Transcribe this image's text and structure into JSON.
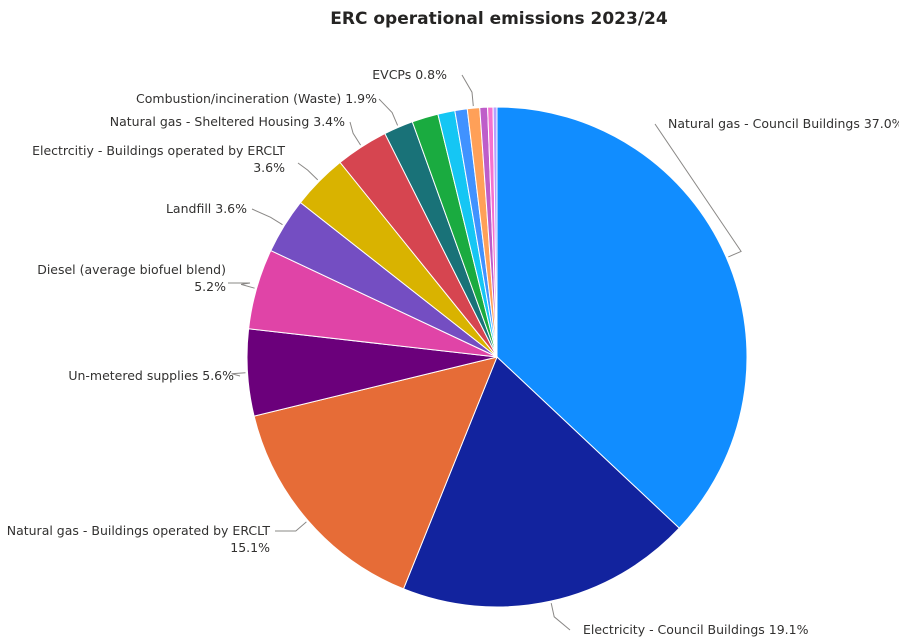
{
  "chart_data": {
    "type": "pie",
    "title": "ERC operational emissions 2023/24",
    "slices": [
      {
        "label": "Natural gas - Council Buildings",
        "value": 37.0,
        "value_label": "37.0%",
        "color": "#118dff"
      },
      {
        "label": "Electricity - Council Buildings",
        "value": 19.1,
        "value_label": "19.1%",
        "color": "#12239e"
      },
      {
        "label": "Natural gas - Buildings operated by ERCLT",
        "value": 15.1,
        "value_label": "15.1%",
        "color": "#e66c37"
      },
      {
        "label": "Un-metered supplies",
        "value": 5.6,
        "value_label": "5.6%",
        "color": "#6b007b"
      },
      {
        "label": "Diesel (average biofuel blend)",
        "value": 5.2,
        "value_label": "5.2%",
        "color": "#e044a7"
      },
      {
        "label": "Landfill",
        "value": 3.6,
        "value_label": "3.6%",
        "color": "#744ec2"
      },
      {
        "label": "Electrcitiy - Buildings operated by ERCLT",
        "value": 3.6,
        "value_label": "3.6%",
        "color": "#d9b300"
      },
      {
        "label": "Natural gas - Sheltered Housing",
        "value": 3.4,
        "value_label": "3.4%",
        "color": "#d64550"
      },
      {
        "label": "Combustion/incineration (Waste)",
        "value": 1.9,
        "value_label": "1.9%",
        "color": "#197278"
      },
      {
        "label": "",
        "value": 1.7,
        "value_label": "",
        "color": "#1aab40"
      },
      {
        "label": "",
        "value": 1.1,
        "value_label": "",
        "color": "#15c6f4"
      },
      {
        "label": "",
        "value": 0.8,
        "value_label": "",
        "color": "#4092ff"
      },
      {
        "label": "EVCPs",
        "value": 0.8,
        "value_label": "0.8%",
        "color": "#ffa058"
      },
      {
        "label": "",
        "value": 0.5,
        "value_label": "",
        "color": "#be5dc9"
      },
      {
        "label": "",
        "value": 0.35,
        "value_label": "",
        "color": "#f472d0"
      },
      {
        "label": "",
        "value": 0.25,
        "value_label": "",
        "color": "#b5a1ff"
      }
    ]
  }
}
